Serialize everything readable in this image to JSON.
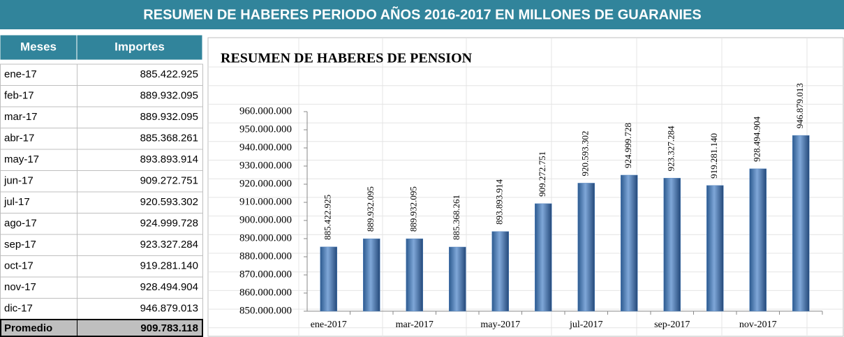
{
  "title": "RESUMEN DE HABERES PERIODO AÑOS 2016-2017 EN MILLONES DE GUARANIES",
  "table": {
    "header": [
      "Meses",
      "Importes"
    ],
    "rows": [
      [
        "ene-17",
        "885.422.925"
      ],
      [
        "feb-17",
        "889.932.095"
      ],
      [
        "mar-17",
        "889.932.095"
      ],
      [
        "abr-17",
        "885.368.261"
      ],
      [
        "may-17",
        "893.893.914"
      ],
      [
        "jun-17",
        "909.272.751"
      ],
      [
        "jul-17",
        "920.593.302"
      ],
      [
        "ago-17",
        "924.999.728"
      ],
      [
        "sep-17",
        "923.327.284"
      ],
      [
        "oct-17",
        "919.281.140"
      ],
      [
        "nov-17",
        "928.494.904"
      ],
      [
        "dic-17",
        "946.879.013"
      ]
    ],
    "footer": [
      "Promedio",
      "909.783.118"
    ]
  },
  "chart_data": {
    "type": "bar",
    "title": "RESUMEN  DE HABERES  DE PENSION",
    "categories": [
      "ene-2017",
      null,
      "mar-2017",
      null,
      "may-2017",
      null,
      "jul-2017",
      null,
      "sep-2017",
      null,
      "nov-2017",
      null
    ],
    "values": [
      885422925,
      889932095,
      889932095,
      885368261,
      893893914,
      909272751,
      920593302,
      924999728,
      923327284,
      919281140,
      928494904,
      946879013
    ],
    "value_labels": [
      "885.422.925",
      "889.932.095",
      "889.932.095",
      "885.368.261",
      "893.893.914",
      "909.272.751",
      "920.593.302",
      "924.999.728",
      "923.327.284",
      "919.281.140",
      "928.494.904",
      "946.879.013"
    ],
    "color": "#4f81bd",
    "ylim": [
      850000000,
      960000000
    ],
    "yticks": [
      {
        "value": 850000000,
        "label": "850.000.000"
      },
      {
        "value": 860000000,
        "label": "860.000.000"
      },
      {
        "value": 870000000,
        "label": "870.000.000"
      },
      {
        "value": 880000000,
        "label": "880.000.000"
      },
      {
        "value": 890000000,
        "label": "890.000.000"
      },
      {
        "value": 900000000,
        "label": "900.000.000"
      },
      {
        "value": 910000000,
        "label": "910.000.000"
      },
      {
        "value": 920000000,
        "label": "920.000.000"
      },
      {
        "value": 930000000,
        "label": "930.000.000"
      },
      {
        "value": 940000000,
        "label": "940.000.000"
      },
      {
        "value": 950000000,
        "label": "950.000.000"
      },
      {
        "value": 960000000,
        "label": "960.000.000"
      }
    ]
  }
}
